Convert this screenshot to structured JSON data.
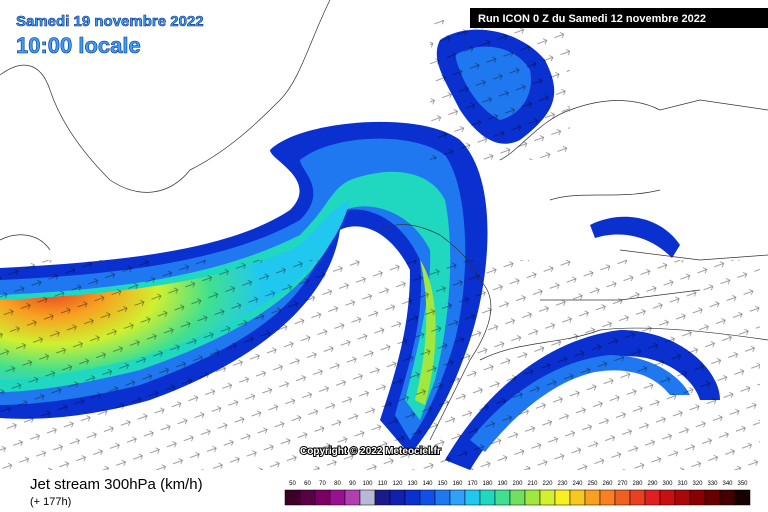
{
  "header": {
    "date": "Samedi 19 novembre 2022",
    "time": "10:00 locale",
    "run": "Run ICON 0 Z du Samedi 12 novembre 2022"
  },
  "copyright": "Copyright © 2022 Meteociel.fr",
  "footer": {
    "title": "Jet stream 300hPa (km/h)",
    "lead": "(+ 177h)"
  },
  "legend": {
    "ticks": [
      50,
      60,
      70,
      80,
      90,
      100,
      110,
      120,
      130,
      140,
      150,
      160,
      170,
      180,
      190,
      200,
      210,
      220,
      230,
      240,
      250,
      260,
      270,
      280,
      290,
      300,
      310,
      320,
      330,
      340,
      350
    ],
    "colors": [
      "#3c0028",
      "#5a0046",
      "#7a0064",
      "#9a1090",
      "#b040b0",
      "#b8b8d8",
      "#1a1a8a",
      "#1020b0",
      "#0a30d0",
      "#1050e8",
      "#2078f0",
      "#30a0f8",
      "#20c8f0",
      "#20d8c0",
      "#40e090",
      "#70e060",
      "#a0e840",
      "#d0f030",
      "#f8f020",
      "#f8c820",
      "#f8a020",
      "#f88020",
      "#f06020",
      "#e84020",
      "#e02020",
      "#c81010",
      "#a80808",
      "#880000",
      "#680000",
      "#440000",
      "#180000"
    ]
  }
}
